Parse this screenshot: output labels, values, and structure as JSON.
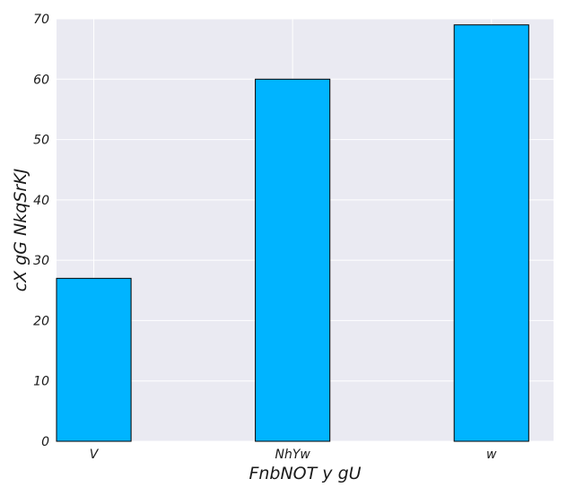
{
  "chart_data": {
    "type": "bar",
    "categories": [
      "V",
      "NhYw",
      "w"
    ],
    "values": [
      27,
      60,
      69
    ],
    "xlabel": "FnbNOT y gU",
    "ylabel": "cX gG NkqSrKJ",
    "ylim": [
      0,
      70
    ],
    "yticks": [
      0,
      10,
      20,
      30,
      40,
      50,
      60,
      70
    ],
    "grid": true,
    "style": {
      "background": "#eaeaf2",
      "grid_color": "#ffffff",
      "bar_color": "#00b4ff",
      "bar_edge": "#000000"
    }
  }
}
